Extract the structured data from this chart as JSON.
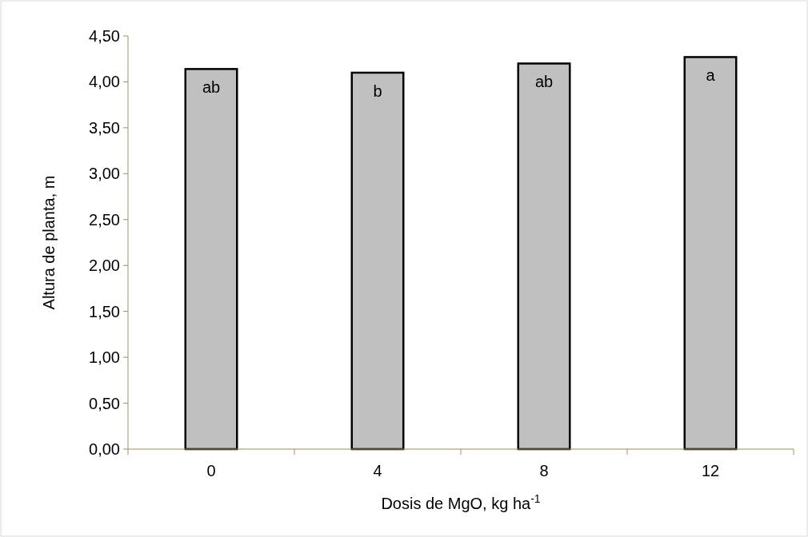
{
  "chart_data": {
    "type": "bar",
    "xlabel": "Dosis de MgO, kg ha$^{-1}$",
    "ylabel": "Altura de planta, m",
    "categories": [
      "0",
      "4",
      "8",
      "12"
    ],
    "series": [
      {
        "color": "#c0c0c0",
        "values": [
          4.14,
          4.1,
          4.2,
          4.27
        ]
      }
    ],
    "ylim": [
      0,
      4.5
    ],
    "yticks": [
      {
        "value": 0,
        "label": "0,00"
      },
      {
        "value": 0.5,
        "label": "0,50"
      },
      {
        "value": 1,
        "label": "1,00"
      },
      {
        "value": 1.5,
        "label": "1,50"
      },
      {
        "value": 2,
        "label": "2,00"
      },
      {
        "value": 2.5,
        "label": "2,50"
      },
      {
        "value": 3,
        "label": "3,00"
      },
      {
        "value": 3.5,
        "label": "3,50"
      },
      {
        "value": 4,
        "label": "4,00"
      },
      {
        "value": 4.5,
        "label": "4,50"
      }
    ],
    "annotations": [
      {
        "text": "ab",
        "x": "0",
        "y": 4.14
      },
      {
        "text": "b",
        "x": "4",
        "y": 4.1
      },
      {
        "text": "ab",
        "x": "8",
        "y": 4.2
      },
      {
        "text": "a",
        "x": "12",
        "y": 4.27
      }
    ],
    "grid": false
  }
}
